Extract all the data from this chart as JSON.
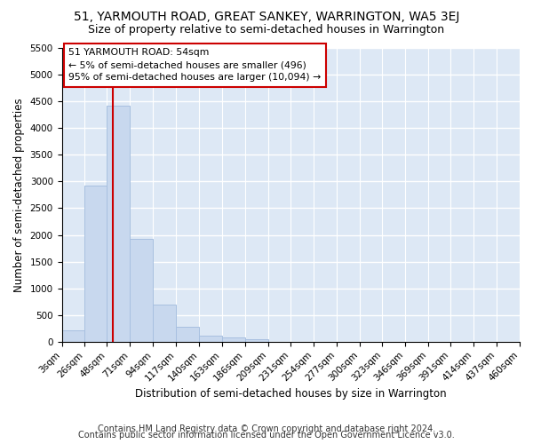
{
  "title": "51, YARMOUTH ROAD, GREAT SANKEY, WARRINGTON, WA5 3EJ",
  "subtitle": "Size of property relative to semi-detached houses in Warrington",
  "xlabel": "Distribution of semi-detached houses by size in Warrington",
  "ylabel": "Number of semi-detached properties",
  "footnote1": "Contains HM Land Registry data © Crown copyright and database right 2024.",
  "footnote2": "Contains public sector information licensed under the Open Government Licence v3.0.",
  "annotation_title": "51 YARMOUTH ROAD: 54sqm",
  "annotation_line1": "← 5% of semi-detached houses are smaller (496)",
  "annotation_line2": "95% of semi-detached houses are larger (10,094) →",
  "property_size": 54,
  "bin_edges": [
    3,
    26,
    48,
    71,
    94,
    117,
    140,
    163,
    186,
    209,
    231,
    254,
    277,
    300,
    323,
    346,
    369,
    391,
    414,
    437,
    460
  ],
  "counts": [
    220,
    2920,
    4420,
    1920,
    700,
    280,
    120,
    80,
    50,
    0,
    0,
    0,
    0,
    0,
    0,
    0,
    0,
    0,
    0,
    0
  ],
  "bar_color": "#c8d8ee",
  "bar_edge_color": "#a8c0e0",
  "vline_color": "#cc0000",
  "box_edge_color": "#cc0000",
  "ylim": [
    0,
    5500
  ],
  "yticks": [
    0,
    500,
    1000,
    1500,
    2000,
    2500,
    3000,
    3500,
    4000,
    4500,
    5000,
    5500
  ],
  "bg_color": "#dde8f5",
  "grid_color": "#ffffff",
  "title_fontsize": 10,
  "subtitle_fontsize": 9,
  "axis_label_fontsize": 8.5,
  "tick_fontsize": 7.5,
  "footnote_fontsize": 7
}
